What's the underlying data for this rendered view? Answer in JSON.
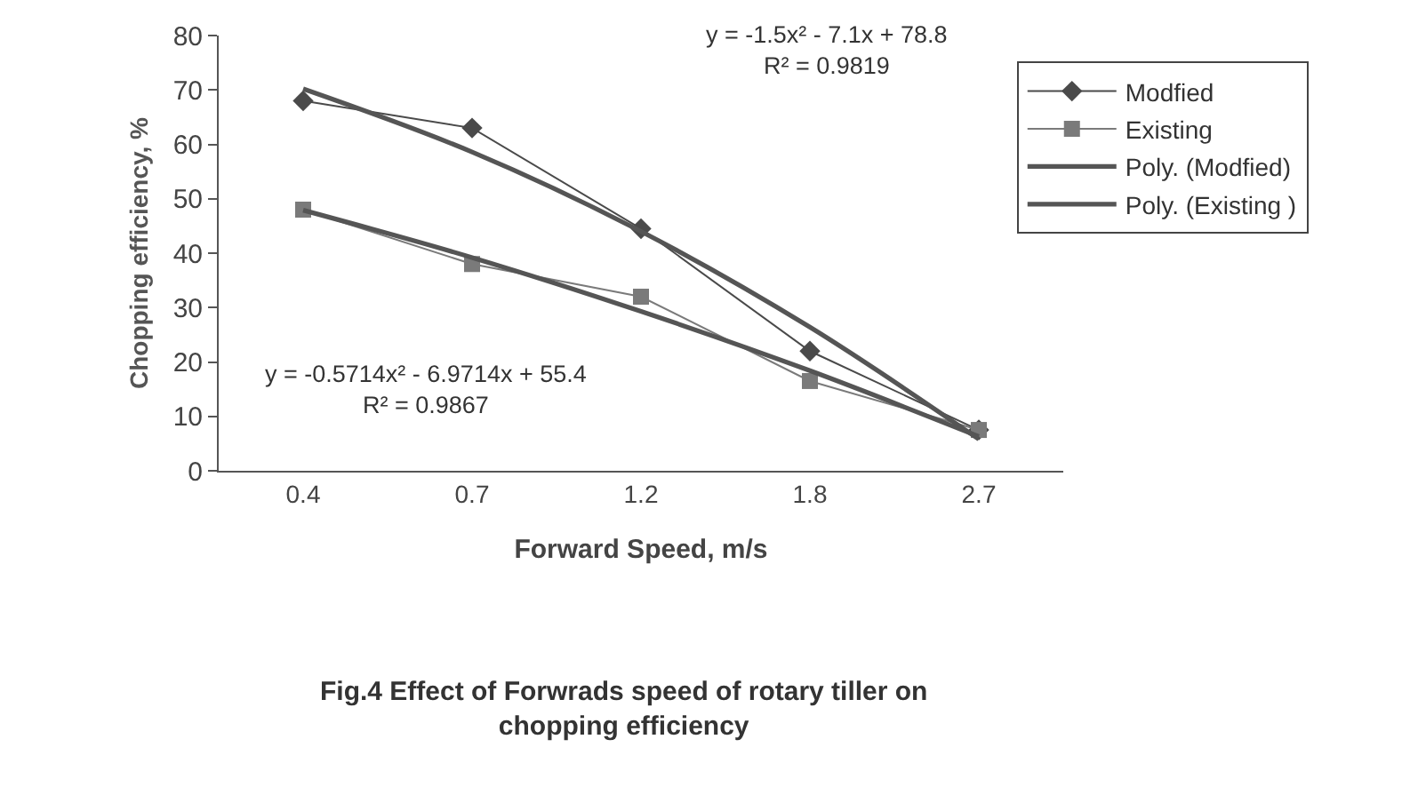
{
  "chart_data": {
    "type": "line",
    "xlabel": "Forward Speed, m/s",
    "ylabel": "Chopping efficiency, %",
    "categories": [
      "0.4",
      "0.7",
      "1.2",
      "1.8",
      "2.7"
    ],
    "ylim": [
      0,
      80
    ],
    "yticks": [
      0,
      10,
      20,
      30,
      40,
      50,
      60,
      70,
      80
    ],
    "grid": false,
    "legend": "right",
    "series": [
      {
        "name": "Modfied",
        "color": "#4a4a4a",
        "marker": "diamond",
        "values": [
          68,
          63,
          44.5,
          22,
          7.5
        ]
      },
      {
        "name": "Existing",
        "color": "#7a7a7a",
        "marker": "square",
        "values": [
          48,
          38,
          32,
          16.5,
          7.5
        ]
      },
      {
        "name": "Poly. (Modfied)",
        "color": "#555555",
        "marker": "none",
        "values": [
          70.2,
          58.6,
          44,
          26.4,
          5.8
        ]
      },
      {
        "name": "Poly. (Existing )",
        "color": "#555555",
        "marker": "none",
        "values": [
          47.9,
          39.2,
          29.3,
          18.4,
          6.3
        ]
      }
    ],
    "annotations": [
      "y = -1.5x² - 7.1x + 78.8\nR² = 0.9819",
      "y = -0.5714x² - 6.9714x + 55.4\nR² = 0.9867",
      "Fig.4 Effect of Forwrads speed of rotary tiller on\nchopping efficiency"
    ]
  }
}
